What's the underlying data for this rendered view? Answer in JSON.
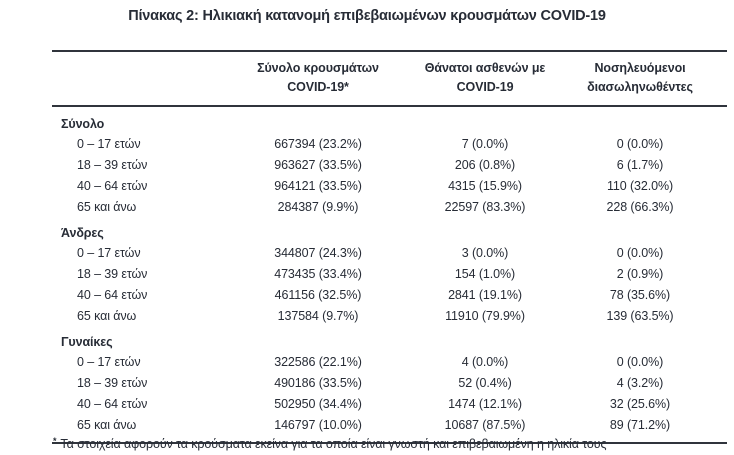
{
  "title": "Πίνακας 2: Ηλικιακή κατανομή επιβεβαιωμένων κρουσμάτων COVID-19",
  "colors": {
    "background": "#ffffff",
    "text": "#272c36",
    "rule": "#30343c"
  },
  "table": {
    "columns": [
      {
        "line1": "Σύνολο κρουσμάτων",
        "line2": "COVID-19*"
      },
      {
        "line1": "Θάνατοι ασθενών με",
        "line2": "COVID-19"
      },
      {
        "line1": "Νοσηλευόμενοι",
        "line2": "διασωληνωθέντες"
      }
    ],
    "sections": [
      {
        "label": "Σύνολο",
        "rows": [
          {
            "label": "0 – 17 ετών",
            "cases": "667394 (23.2%)",
            "deaths": "7 (0.0%)",
            "intubated": "0 (0.0%)"
          },
          {
            "label": "18 – 39 ετών",
            "cases": "963627 (33.5%)",
            "deaths": "206 (0.8%)",
            "intubated": "6 (1.7%)"
          },
          {
            "label": "40 – 64 ετών",
            "cases": "964121 (33.5%)",
            "deaths": "4315 (15.9%)",
            "intubated": "110 (32.0%)"
          },
          {
            "label": "65 και άνω",
            "cases": "284387 (9.9%)",
            "deaths": "22597 (83.3%)",
            "intubated": "228 (66.3%)"
          }
        ]
      },
      {
        "label": "Άνδρες",
        "rows": [
          {
            "label": "0 – 17 ετών",
            "cases": "344807 (24.3%)",
            "deaths": "3 (0.0%)",
            "intubated": "0 (0.0%)"
          },
          {
            "label": "18 – 39 ετών",
            "cases": "473435 (33.4%)",
            "deaths": "154 (1.0%)",
            "intubated": "2 (0.9%)"
          },
          {
            "label": "40 – 64 ετών",
            "cases": "461156 (32.5%)",
            "deaths": "2841 (19.1%)",
            "intubated": "78 (35.6%)"
          },
          {
            "label": "65 και άνω",
            "cases": "137584 (9.7%)",
            "deaths": "11910 (79.9%)",
            "intubated": "139 (63.5%)"
          }
        ]
      },
      {
        "label": "Γυναίκες",
        "rows": [
          {
            "label": "0 – 17 ετών",
            "cases": "322586 (22.1%)",
            "deaths": "4 (0.0%)",
            "intubated": "0 (0.0%)"
          },
          {
            "label": "18 – 39 ετών",
            "cases": "490186 (33.5%)",
            "deaths": "52 (0.4%)",
            "intubated": "4 (3.2%)"
          },
          {
            "label": "40 – 64 ετών",
            "cases": "502950 (34.4%)",
            "deaths": "1474 (12.1%)",
            "intubated": "32 (25.6%)"
          },
          {
            "label": "65 και άνω",
            "cases": "146797 (10.0%)",
            "deaths": "10687 (87.5%)",
            "intubated": "89 (71.2%)"
          }
        ]
      }
    ]
  },
  "footnote": {
    "marker": "*",
    "text": "Τα στοιχεία αφορούν τα κρούσματα εκείνα για τα οποία είναι γνωστή και επιβεβαιωμένη η ηλικία τους"
  }
}
